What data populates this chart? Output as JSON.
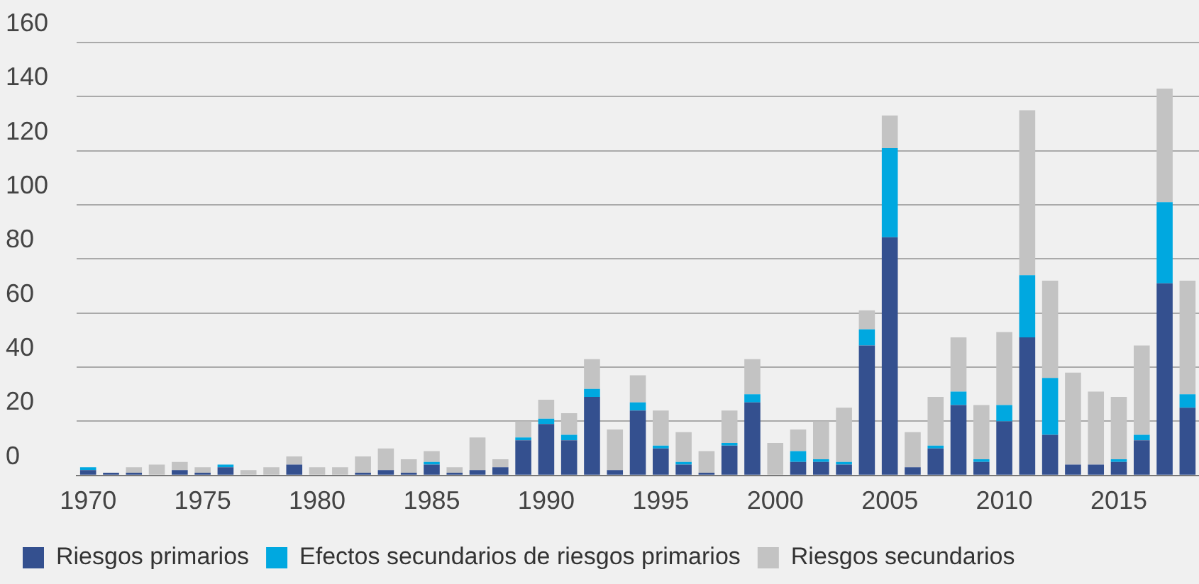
{
  "chart_data": {
    "type": "bar",
    "stacked": true,
    "categories": [
      "1970",
      null,
      null,
      null,
      null,
      "1975",
      null,
      null,
      null,
      null,
      "1980",
      null,
      null,
      null,
      null,
      "1985",
      null,
      null,
      null,
      null,
      "1990",
      null,
      null,
      null,
      null,
      "1995",
      null,
      null,
      null,
      null,
      "2000",
      null,
      null,
      null,
      null,
      "2005",
      null,
      null,
      null,
      null,
      "2010",
      null,
      null,
      null,
      null,
      "2015",
      null,
      null,
      null
    ],
    "series": [
      {
        "name": "Riesgos primarios",
        "color": "#34508f",
        "values": [
          2,
          1,
          1,
          0,
          2,
          1,
          3,
          0,
          0,
          4,
          0,
          0,
          1,
          2,
          1,
          4,
          1,
          2,
          3,
          13,
          19,
          13,
          29,
          2,
          24,
          10,
          4,
          1,
          11,
          27,
          0,
          5,
          5,
          4,
          48,
          88,
          3,
          10,
          26,
          5,
          20,
          51,
          15,
          4,
          4,
          5,
          13,
          71,
          25
        ]
      },
      {
        "name": "Efectos secundarios de riesgos primarios",
        "color": "#00a8e0",
        "values": [
          1,
          0,
          0,
          0,
          0,
          0,
          1,
          0,
          0,
          0,
          0,
          0,
          0,
          0,
          0,
          1,
          0,
          0,
          0,
          1,
          2,
          2,
          3,
          0,
          3,
          1,
          1,
          0,
          1,
          3,
          0,
          4,
          1,
          1,
          6,
          33,
          0,
          1,
          5,
          1,
          6,
          23,
          21,
          0,
          0,
          1,
          2,
          30,
          5
        ]
      },
      {
        "name": "Riesgos secundarios",
        "color": "#c3c3c3",
        "values": [
          0,
          0,
          2,
          4,
          3,
          2,
          0,
          2,
          3,
          3,
          3,
          3,
          6,
          8,
          5,
          4,
          2,
          12,
          3,
          6,
          7,
          8,
          11,
          15,
          10,
          13,
          11,
          8,
          12,
          13,
          12,
          8,
          14,
          20,
          7,
          12,
          13,
          18,
          20,
          20,
          27,
          61,
          36,
          34,
          27,
          23,
          33,
          42,
          42
        ]
      }
    ],
    "ylim": [
      0,
      160
    ],
    "yticks": [
      0,
      20,
      40,
      60,
      80,
      100,
      120,
      140,
      160
    ],
    "grid": "y",
    "legend": "bottom"
  }
}
